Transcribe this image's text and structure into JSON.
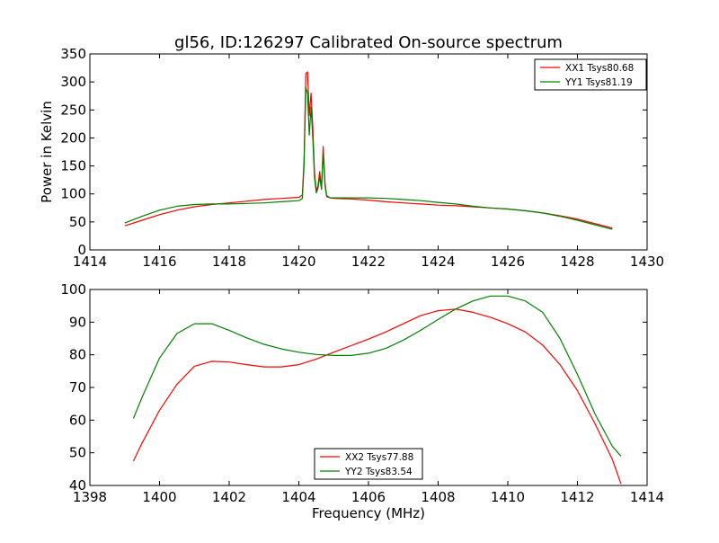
{
  "title": "gl56, ID:126297 Calibrated On-source spectrum",
  "chart_data": [
    {
      "type": "line",
      "ylabel": "Power in Kelvin",
      "xlabel": "",
      "xlim": [
        1414,
        1430
      ],
      "ylim": [
        0,
        350
      ],
      "xticks": [
        1414,
        1416,
        1418,
        1420,
        1422,
        1424,
        1426,
        1428,
        1430
      ],
      "yticks": [
        0,
        50,
        100,
        150,
        200,
        250,
        300,
        350
      ],
      "legend_position": "top-right",
      "series": [
        {
          "name": "XX1 Tsys80.68",
          "color": "#ff0000",
          "x": [
            1415.0,
            1415.5,
            1416.0,
            1416.5,
            1417.0,
            1417.5,
            1418.0,
            1418.5,
            1419.0,
            1419.5,
            1420.0,
            1420.1,
            1420.15,
            1420.2,
            1420.25,
            1420.3,
            1420.35,
            1420.4,
            1420.45,
            1420.5,
            1420.55,
            1420.6,
            1420.65,
            1420.7,
            1420.75,
            1420.8,
            1420.9,
            1421.0,
            1421.5,
            1422.0,
            1422.5,
            1423.0,
            1423.5,
            1424.0,
            1424.5,
            1425.0,
            1425.5,
            1426.0,
            1426.5,
            1427.0,
            1427.5,
            1428.0,
            1428.5,
            1429.0
          ],
          "values": [
            43,
            53,
            63,
            71,
            77,
            81,
            84,
            87,
            90,
            92,
            94,
            98,
            160,
            315,
            318,
            240,
            280,
            220,
            140,
            105,
            115,
            140,
            110,
            185,
            120,
            97,
            93,
            92,
            91,
            89,
            86,
            84,
            82,
            80,
            79,
            77,
            75,
            73,
            70,
            66,
            61,
            55,
            47,
            39
          ]
        },
        {
          "name": "YY1 Tsys81.19",
          "color": "#008000",
          "x": [
            1415.0,
            1415.5,
            1416.0,
            1416.5,
            1417.0,
            1417.5,
            1418.0,
            1418.5,
            1419.0,
            1419.5,
            1420.0,
            1420.1,
            1420.15,
            1420.2,
            1420.25,
            1420.3,
            1420.35,
            1420.4,
            1420.45,
            1420.5,
            1420.55,
            1420.6,
            1420.65,
            1420.7,
            1420.75,
            1420.8,
            1420.9,
            1421.0,
            1421.5,
            1422.0,
            1422.5,
            1423.0,
            1423.5,
            1424.0,
            1424.5,
            1425.0,
            1425.5,
            1426.0,
            1426.5,
            1427.0,
            1427.5,
            1428.0,
            1428.5,
            1429.0
          ],
          "values": [
            48,
            60,
            71,
            78,
            81,
            82,
            82,
            83,
            84,
            86,
            88,
            92,
            150,
            290,
            280,
            205,
            255,
            200,
            130,
            102,
            110,
            130,
            108,
            175,
            115,
            95,
            93,
            93,
            93,
            93,
            92,
            90,
            88,
            85,
            82,
            78,
            75,
            73,
            70,
            66,
            60,
            53,
            45,
            37
          ]
        }
      ]
    },
    {
      "type": "line",
      "ylabel": "",
      "xlabel": "Frequency (MHz)",
      "xlim": [
        1398,
        1414
      ],
      "ylim": [
        40,
        100
      ],
      "xticks": [
        1398,
        1400,
        1402,
        1404,
        1406,
        1408,
        1410,
        1412,
        1414
      ],
      "yticks": [
        40,
        50,
        60,
        70,
        80,
        90,
        100
      ],
      "legend_position": "bottom-center",
      "series": [
        {
          "name": "XX2 Tsys77.88",
          "color": "#ff0000",
          "x": [
            1399.25,
            1399.5,
            1400.0,
            1400.5,
            1401.0,
            1401.5,
            1402.0,
            1402.5,
            1403.0,
            1403.5,
            1404.0,
            1404.5,
            1405.0,
            1405.5,
            1406.0,
            1406.5,
            1407.0,
            1407.5,
            1408.0,
            1408.5,
            1409.0,
            1409.5,
            1410.0,
            1410.5,
            1411.0,
            1411.5,
            1412.0,
            1412.5,
            1413.0,
            1413.25
          ],
          "values": [
            47.5,
            53,
            63,
            71,
            76.5,
            78,
            77.8,
            77,
            76.3,
            76.3,
            77,
            78.7,
            80.8,
            82.8,
            84.8,
            87,
            89.5,
            92,
            93.5,
            94,
            93,
            91.5,
            89.5,
            87,
            83,
            77,
            69,
            59,
            48,
            40.5
          ]
        },
        {
          "name": "YY2 Tsys83.54",
          "color": "#008000",
          "x": [
            1399.25,
            1399.5,
            1400.0,
            1400.5,
            1401.0,
            1401.5,
            1402.0,
            1402.5,
            1403.0,
            1403.5,
            1404.0,
            1404.5,
            1405.0,
            1405.5,
            1406.0,
            1406.5,
            1407.0,
            1407.5,
            1408.0,
            1408.5,
            1409.0,
            1409.5,
            1410.0,
            1410.5,
            1411.0,
            1411.5,
            1412.0,
            1412.5,
            1413.0,
            1413.25
          ],
          "values": [
            60.5,
            67,
            79,
            86.5,
            89.5,
            89.5,
            87.5,
            85.2,
            83.2,
            81.8,
            80.8,
            80.1,
            79.8,
            79.8,
            80.5,
            82,
            84.5,
            87.5,
            90.8,
            94,
            96.5,
            98,
            98,
            96.5,
            93,
            85,
            74,
            62,
            52,
            49
          ]
        }
      ]
    }
  ]
}
